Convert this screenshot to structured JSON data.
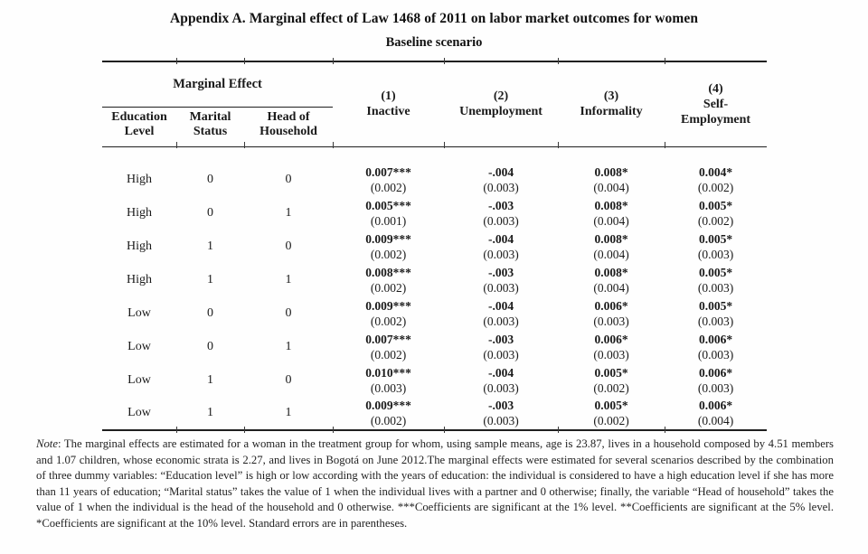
{
  "page": {
    "title": "Appendix A. Marginal effect of Law 1468 of 2011 on labor market outcomes for women",
    "subtitle": "Baseline scenario"
  },
  "table": {
    "group_header": "Marginal Effect",
    "sub_headers": [
      "Education Level",
      "Marital Status",
      "Head of Household"
    ],
    "outcomes": [
      {
        "num": "(1)",
        "label": "Inactive"
      },
      {
        "num": "(2)",
        "label": "Unemployment"
      },
      {
        "num": "(3)",
        "label": "Informality"
      },
      {
        "num": "(4)",
        "label": "Self-Employment"
      }
    ],
    "rows": [
      {
        "education": "High",
        "marital": "0",
        "head": "0",
        "values": [
          {
            "coef": "0.007***",
            "se": "(0.002)"
          },
          {
            "coef": "-.004",
            "se": "(0.003)"
          },
          {
            "coef": "0.008*",
            "se": "(0.004)"
          },
          {
            "coef": "0.004*",
            "se": "(0.002)"
          }
        ]
      },
      {
        "education": "High",
        "marital": "0",
        "head": "1",
        "values": [
          {
            "coef": "0.005***",
            "se": "(0.001)"
          },
          {
            "coef": "-.003",
            "se": "(0.003)"
          },
          {
            "coef": "0.008*",
            "se": "(0.004)"
          },
          {
            "coef": "0.005*",
            "se": "(0.002)"
          }
        ]
      },
      {
        "education": "High",
        "marital": "1",
        "head": "0",
        "values": [
          {
            "coef": "0.009***",
            "se": "(0.002)"
          },
          {
            "coef": "-.004",
            "se": "(0.003)"
          },
          {
            "coef": "0.008*",
            "se": "(0.004)"
          },
          {
            "coef": "0.005*",
            "se": "(0.003)"
          }
        ]
      },
      {
        "education": "High",
        "marital": "1",
        "head": "1",
        "values": [
          {
            "coef": "0.008***",
            "se": "(0.002)"
          },
          {
            "coef": "-.003",
            "se": "(0.003)"
          },
          {
            "coef": "0.008*",
            "se": "(0.004)"
          },
          {
            "coef": "0.005*",
            "se": "(0.003)"
          }
        ]
      },
      {
        "education": "Low",
        "marital": "0",
        "head": "0",
        "values": [
          {
            "coef": "0.009***",
            "se": "(0.002)"
          },
          {
            "coef": "-.004",
            "se": "(0.003)"
          },
          {
            "coef": "0.006*",
            "se": "(0.003)"
          },
          {
            "coef": "0.005*",
            "se": "(0.003)"
          }
        ]
      },
      {
        "education": "Low",
        "marital": "0",
        "head": "1",
        "values": [
          {
            "coef": "0.007***",
            "se": "(0.002)"
          },
          {
            "coef": "-.003",
            "se": "(0.003)"
          },
          {
            "coef": "0.006*",
            "se": "(0.003)"
          },
          {
            "coef": "0.006*",
            "se": "(0.003)"
          }
        ]
      },
      {
        "education": "Low",
        "marital": "1",
        "head": "0",
        "values": [
          {
            "coef": "0.010***",
            "se": "(0.003)"
          },
          {
            "coef": "-.004",
            "se": "(0.003)"
          },
          {
            "coef": "0.005*",
            "se": "(0.002)"
          },
          {
            "coef": "0.006*",
            "se": "(0.003)"
          }
        ]
      },
      {
        "education": "Low",
        "marital": "1",
        "head": "1",
        "values": [
          {
            "coef": "0.009***",
            "se": "(0.002)"
          },
          {
            "coef": "-.003",
            "se": "(0.003)"
          },
          {
            "coef": "0.005*",
            "se": "(0.002)"
          },
          {
            "coef": "0.006*",
            "se": "(0.004)"
          }
        ]
      }
    ]
  },
  "note": {
    "label": "Note",
    "text": ": The marginal effects are estimated for a woman in the treatment group for whom, using sample means, age is 23.87, lives in a household composed by 4.51 members and 1.07 children, whose economic strata is 2.27, and lives in Bogotá on June 2012.The marginal effects were estimated for several scenarios described by the combination of three dummy variables: “Education level” is high or low according with the years of education: the individual is considered to have a high education level if she has more than 11 years of education; “Marital status” takes the value of 1 when the individual lives with a partner and 0 otherwise; finally, the variable “Head of household” takes the value of 1 when the individual is the head of the household and 0 otherwise. ***Coefficients are significant at the 1% level. **Coefficients are significant at the 5% level. *Coefficients are significant at the 10% level.  Standard errors are in parentheses."
  },
  "colors": {
    "rule": "#1f1f1f",
    "text": "#1a1a1a",
    "background": "#fefefe"
  }
}
